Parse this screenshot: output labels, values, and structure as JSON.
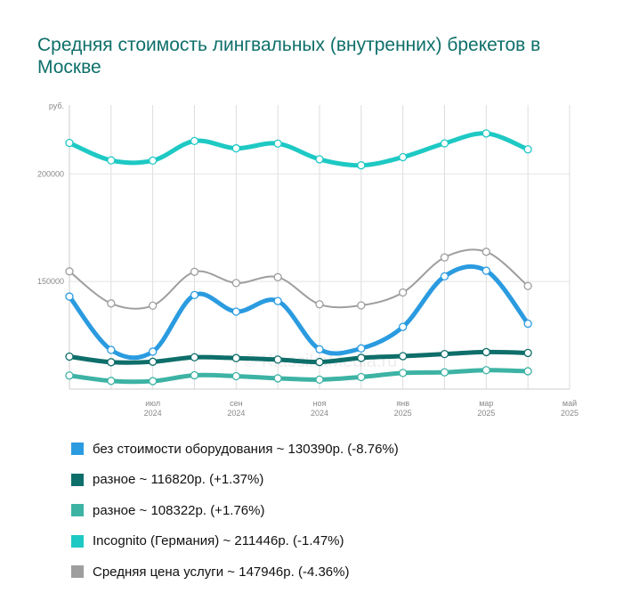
{
  "title": "Средняя стоимость лингвальных (внутренних) брекетов в Москве",
  "watermark": "© KlassikaMedia.ru",
  "chart_data": {
    "type": "line",
    "title": "Средняя стоимость лингвальных (внутренних) брекетов в Москве",
    "ylabel": "руб.",
    "ylim": [
      100000,
      232000
    ],
    "grid": true,
    "legend_position": "bottom",
    "x": [
      "2024-05",
      "2024-06",
      "2024-07",
      "2024-08",
      "2024-09",
      "2024-10",
      "2024-11",
      "2024-12",
      "2025-01",
      "2025-02",
      "2025-03",
      "2025-04",
      "2025-05"
    ],
    "x_tick_labels": [
      {
        "x": "2024-07",
        "line1": "июл",
        "line2": "2024"
      },
      {
        "x": "2024-09",
        "line1": "сен",
        "line2": "2024"
      },
      {
        "x": "2024-11",
        "line1": "ноя",
        "line2": "2024"
      },
      {
        "x": "2025-01",
        "line1": "янв",
        "line2": "2025"
      },
      {
        "x": "2025-03",
        "line1": "мар",
        "line2": "2025"
      },
      {
        "x": "2025-05",
        "line1": "май",
        "line2": "2025"
      }
    ],
    "y_ticks": [
      150000,
      200000
    ],
    "y_tick_labels": [
      "150000",
      "200000"
    ],
    "series": [
      {
        "name": "Средняя цена услуги ~ 147946р. (-4.36%)",
        "color": "#9e9e9e",
        "values": [
          154700,
          139800,
          138800,
          154500,
          149300,
          152000,
          139400,
          138900,
          144900,
          161200,
          163800,
          147900,
          null
        ]
      },
      {
        "name": "без стоимости оборудования ~ 130390р. (-8.76%)",
        "color": "#2b9be0",
        "values": [
          143000,
          118200,
          117400,
          143700,
          136000,
          140900,
          118500,
          118900,
          128900,
          152400,
          155000,
          130400,
          null
        ]
      },
      {
        "name": "разное ~ 116820р. (+1.37%)",
        "color": "#0e6e6a",
        "values": [
          115100,
          112500,
          112700,
          114800,
          114400,
          113700,
          112600,
          114500,
          115300,
          116300,
          117200,
          116800,
          null
        ]
      },
      {
        "name": "разное ~ 108322р. (+1.76%)",
        "color": "#3db3a4",
        "values": [
          106300,
          103800,
          103700,
          106400,
          106000,
          105000,
          104400,
          105600,
          107500,
          107800,
          108800,
          108300,
          null
        ]
      },
      {
        "name": "Incognito (Германия) ~ 211446р. (-1.47%)",
        "color": "#1ec9c4",
        "values": [
          214400,
          206300,
          206200,
          215300,
          211900,
          214100,
          206800,
          204000,
          207800,
          214200,
          218800,
          211400,
          null
        ]
      }
    ]
  },
  "legend": [
    {
      "label": "без стоимости оборудования ~ 130390р. (-8.76%)",
      "color": "#2b9be0"
    },
    {
      "label": "разное ~ 116820р. (+1.37%)",
      "color": "#0e6e6a"
    },
    {
      "label": "разное ~ 108322р. (+1.76%)",
      "color": "#3db3a4"
    },
    {
      "label": "Incognito (Германия) ~ 211446р. (-1.47%)",
      "color": "#1ec9c4"
    },
    {
      "label": "Средняя цена услуги ~ 147946р. (-4.36%)",
      "color": "#9e9e9e"
    }
  ]
}
